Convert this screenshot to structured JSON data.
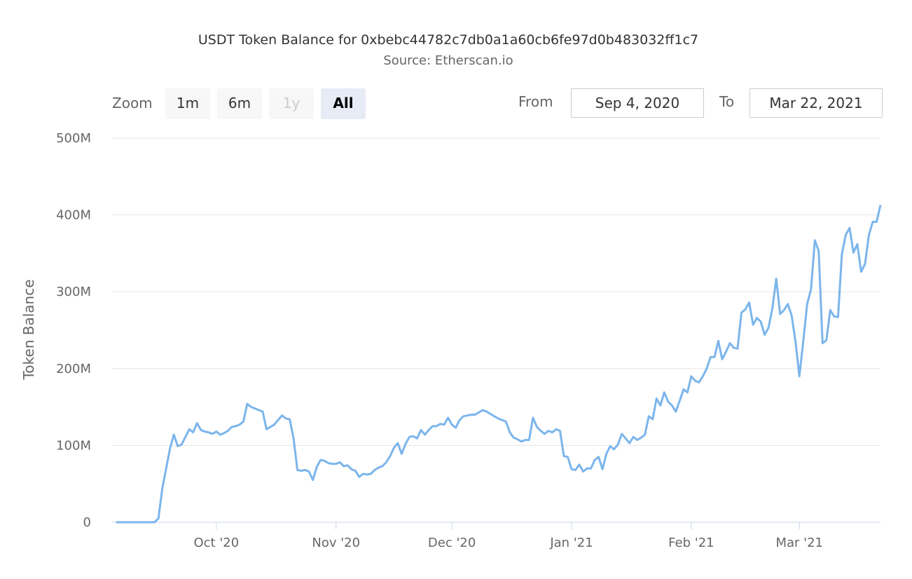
{
  "header": {
    "title": "USDT Token Balance for 0xbebc44782c7db0a1a60cb6fe97d0b483032ff1c7",
    "subtitle": "Source: Etherscan.io"
  },
  "range_selector": {
    "zoom_label": "Zoom",
    "buttons": [
      {
        "label": "1m",
        "state": "normal"
      },
      {
        "label": "6m",
        "state": "normal"
      },
      {
        "label": "1y",
        "state": "disabled"
      },
      {
        "label": "All",
        "state": "active"
      }
    ],
    "from_label": "From",
    "from_value": "Sep 4, 2020",
    "to_label": "To",
    "to_value": "Mar 22, 2021"
  },
  "chart_data": {
    "type": "line",
    "title": "USDT Token Balance for 0xbebc44782c7db0a1a60cb6fe97d0b483032ff1c7",
    "subtitle": "Source: Etherscan.io",
    "xlabel": "",
    "ylabel": "Token Balance",
    "xlim": [
      "2020-09-04",
      "2021-03-22"
    ],
    "ylim": [
      0,
      500000000
    ],
    "grid": true,
    "line_color": "#7cb5ec",
    "y_ticks": [
      {
        "value": 0,
        "label": "0"
      },
      {
        "value": 100000000,
        "label": "100M"
      },
      {
        "value": 200000000,
        "label": "200M"
      },
      {
        "value": 300000000,
        "label": "300M"
      },
      {
        "value": 400000000,
        "label": "400M"
      },
      {
        "value": 500000000,
        "label": "500M"
      }
    ],
    "x_ticks": [
      {
        "date": "2020-10-01",
        "label": "Oct '20"
      },
      {
        "date": "2020-11-01",
        "label": "Nov '20"
      },
      {
        "date": "2020-12-01",
        "label": "Dec '20"
      },
      {
        "date": "2021-01-01",
        "label": "Jan '21"
      },
      {
        "date": "2021-02-01",
        "label": "Feb '21"
      },
      {
        "date": "2021-03-01",
        "label": "Mar '21"
      }
    ],
    "unit": "M",
    "series": [
      {
        "points": [
          [
            "2020-09-05",
            0
          ],
          [
            "2020-09-15",
            0
          ],
          [
            "2020-09-16",
            5
          ],
          [
            "2020-09-17",
            44
          ],
          [
            "2020-09-18",
            70
          ],
          [
            "2020-09-19",
            96
          ],
          [
            "2020-09-20",
            114
          ],
          [
            "2020-09-21",
            99
          ],
          [
            "2020-09-22",
            101
          ],
          [
            "2020-09-23",
            111
          ],
          [
            "2020-09-24",
            121
          ],
          [
            "2020-09-25",
            117
          ],
          [
            "2020-09-26",
            129
          ],
          [
            "2020-09-27",
            120
          ],
          [
            "2020-09-28",
            118
          ],
          [
            "2020-09-29",
            117
          ],
          [
            "2020-09-30",
            115
          ],
          [
            "2020-10-01",
            118
          ],
          [
            "2020-10-02",
            114
          ],
          [
            "2020-10-03",
            116
          ],
          [
            "2020-10-04",
            119
          ],
          [
            "2020-10-05",
            124
          ],
          [
            "2020-10-06",
            125
          ],
          [
            "2020-10-07",
            127
          ],
          [
            "2020-10-08",
            131
          ],
          [
            "2020-10-09",
            154
          ],
          [
            "2020-10-10",
            150
          ],
          [
            "2020-10-11",
            148
          ],
          [
            "2020-10-12",
            146
          ],
          [
            "2020-10-13",
            144
          ],
          [
            "2020-10-14",
            121
          ],
          [
            "2020-10-15",
            124
          ],
          [
            "2020-10-16",
            127
          ],
          [
            "2020-10-17",
            133
          ],
          [
            "2020-10-18",
            139
          ],
          [
            "2020-10-19",
            135
          ],
          [
            "2020-10-20",
            134
          ],
          [
            "2020-10-21",
            109
          ],
          [
            "2020-10-22",
            68
          ],
          [
            "2020-10-23",
            67
          ],
          [
            "2020-10-24",
            68
          ],
          [
            "2020-10-25",
            66
          ],
          [
            "2020-10-26",
            55
          ],
          [
            "2020-10-27",
            72
          ],
          [
            "2020-10-28",
            81
          ],
          [
            "2020-10-29",
            80
          ],
          [
            "2020-10-30",
            77
          ],
          [
            "2020-10-31",
            76
          ],
          [
            "2020-11-01",
            76
          ],
          [
            "2020-11-02",
            78
          ],
          [
            "2020-11-03",
            73
          ],
          [
            "2020-11-04",
            74
          ],
          [
            "2020-11-05",
            69
          ],
          [
            "2020-11-06",
            67
          ],
          [
            "2020-11-07",
            59
          ],
          [
            "2020-11-08",
            63
          ],
          [
            "2020-11-09",
            62
          ],
          [
            "2020-11-10",
            63
          ],
          [
            "2020-11-11",
            68
          ],
          [
            "2020-11-12",
            71
          ],
          [
            "2020-11-13",
            73
          ],
          [
            "2020-11-14",
            78
          ],
          [
            "2020-11-15",
            86
          ],
          [
            "2020-11-16",
            97
          ],
          [
            "2020-11-17",
            103
          ],
          [
            "2020-11-18",
            89
          ],
          [
            "2020-11-19",
            102
          ],
          [
            "2020-11-20",
            111
          ],
          [
            "2020-11-21",
            112
          ],
          [
            "2020-11-22",
            109
          ],
          [
            "2020-11-23",
            120
          ],
          [
            "2020-11-24",
            114
          ],
          [
            "2020-11-25",
            120
          ],
          [
            "2020-11-26",
            125
          ],
          [
            "2020-11-27",
            125
          ],
          [
            "2020-11-28",
            128
          ],
          [
            "2020-11-29",
            127
          ],
          [
            "2020-11-30",
            136
          ],
          [
            "2020-12-01",
            127
          ],
          [
            "2020-12-02",
            123
          ],
          [
            "2020-12-03",
            133
          ],
          [
            "2020-12-04",
            138
          ],
          [
            "2020-12-05",
            139
          ],
          [
            "2020-12-06",
            140
          ],
          [
            "2020-12-07",
            140
          ],
          [
            "2020-12-08",
            143
          ],
          [
            "2020-12-09",
            146
          ],
          [
            "2020-12-10",
            144
          ],
          [
            "2020-12-11",
            141
          ],
          [
            "2020-12-12",
            138
          ],
          [
            "2020-12-13",
            135
          ],
          [
            "2020-12-14",
            133
          ],
          [
            "2020-12-15",
            131
          ],
          [
            "2020-12-16",
            117
          ],
          [
            "2020-12-17",
            110
          ],
          [
            "2020-12-18",
            108
          ],
          [
            "2020-12-19",
            105
          ],
          [
            "2020-12-20",
            107
          ],
          [
            "2020-12-21",
            107
          ],
          [
            "2020-12-22",
            136
          ],
          [
            "2020-12-23",
            124
          ],
          [
            "2020-12-24",
            119
          ],
          [
            "2020-12-25",
            115
          ],
          [
            "2020-12-26",
            119
          ],
          [
            "2020-12-27",
            117
          ],
          [
            "2020-12-28",
            121
          ],
          [
            "2020-12-29",
            119
          ],
          [
            "2020-12-30",
            86
          ],
          [
            "2020-12-31",
            85
          ],
          [
            "2021-01-01",
            69
          ],
          [
            "2021-01-02",
            68
          ],
          [
            "2021-01-03",
            75
          ],
          [
            "2021-01-04",
            66
          ],
          [
            "2021-01-05",
            70
          ],
          [
            "2021-01-06",
            70
          ],
          [
            "2021-01-07",
            81
          ],
          [
            "2021-01-08",
            85
          ],
          [
            "2021-01-09",
            69
          ],
          [
            "2021-01-10",
            89
          ],
          [
            "2021-01-11",
            99
          ],
          [
            "2021-01-12",
            95
          ],
          [
            "2021-01-13",
            101
          ],
          [
            "2021-01-14",
            115
          ],
          [
            "2021-01-15",
            109
          ],
          [
            "2021-01-16",
            103
          ],
          [
            "2021-01-17",
            111
          ],
          [
            "2021-01-18",
            107
          ],
          [
            "2021-01-19",
            110
          ],
          [
            "2021-01-20",
            114
          ],
          [
            "2021-01-21",
            138
          ],
          [
            "2021-01-22",
            134
          ],
          [
            "2021-01-23",
            161
          ],
          [
            "2021-01-24",
            152
          ],
          [
            "2021-01-25",
            169
          ],
          [
            "2021-01-26",
            157
          ],
          [
            "2021-01-27",
            152
          ],
          [
            "2021-01-28",
            144
          ],
          [
            "2021-01-29",
            158
          ],
          [
            "2021-01-30",
            173
          ],
          [
            "2021-01-31",
            169
          ],
          [
            "2021-02-01",
            190
          ],
          [
            "2021-02-02",
            184
          ],
          [
            "2021-02-03",
            182
          ],
          [
            "2021-02-04",
            190
          ],
          [
            "2021-02-05",
            200
          ],
          [
            "2021-02-06",
            215
          ],
          [
            "2021-02-07",
            215
          ],
          [
            "2021-02-08",
            236
          ],
          [
            "2021-02-09",
            212
          ],
          [
            "2021-02-10",
            222
          ],
          [
            "2021-02-11",
            233
          ],
          [
            "2021-02-12",
            227
          ],
          [
            "2021-02-13",
            226
          ],
          [
            "2021-02-14",
            273
          ],
          [
            "2021-02-15",
            277
          ],
          [
            "2021-02-16",
            286
          ],
          [
            "2021-02-17",
            257
          ],
          [
            "2021-02-18",
            266
          ],
          [
            "2021-02-19",
            261
          ],
          [
            "2021-02-20",
            244
          ],
          [
            "2021-02-21",
            253
          ],
          [
            "2021-02-22",
            278
          ],
          [
            "2021-02-23",
            317
          ],
          [
            "2021-02-24",
            271
          ],
          [
            "2021-02-25",
            276
          ],
          [
            "2021-02-26",
            284
          ],
          [
            "2021-02-27",
            269
          ],
          [
            "2021-02-28",
            235
          ],
          [
            "2021-03-01",
            190
          ],
          [
            "2021-03-02",
            235
          ],
          [
            "2021-03-03",
            284
          ],
          [
            "2021-03-04",
            303
          ],
          [
            "2021-03-05",
            367
          ],
          [
            "2021-03-06",
            353
          ],
          [
            "2021-03-07",
            233
          ],
          [
            "2021-03-08",
            237
          ],
          [
            "2021-03-09",
            276
          ],
          [
            "2021-03-10",
            268
          ],
          [
            "2021-03-11",
            267
          ],
          [
            "2021-03-12",
            349
          ],
          [
            "2021-03-13",
            374
          ],
          [
            "2021-03-14",
            383
          ],
          [
            "2021-03-15",
            351
          ],
          [
            "2021-03-16",
            362
          ],
          [
            "2021-03-17",
            326
          ],
          [
            "2021-03-18",
            336
          ],
          [
            "2021-03-19",
            374
          ],
          [
            "2021-03-20",
            391
          ],
          [
            "2021-03-21",
            391
          ],
          [
            "2021-03-22",
            413
          ]
        ]
      }
    ]
  }
}
